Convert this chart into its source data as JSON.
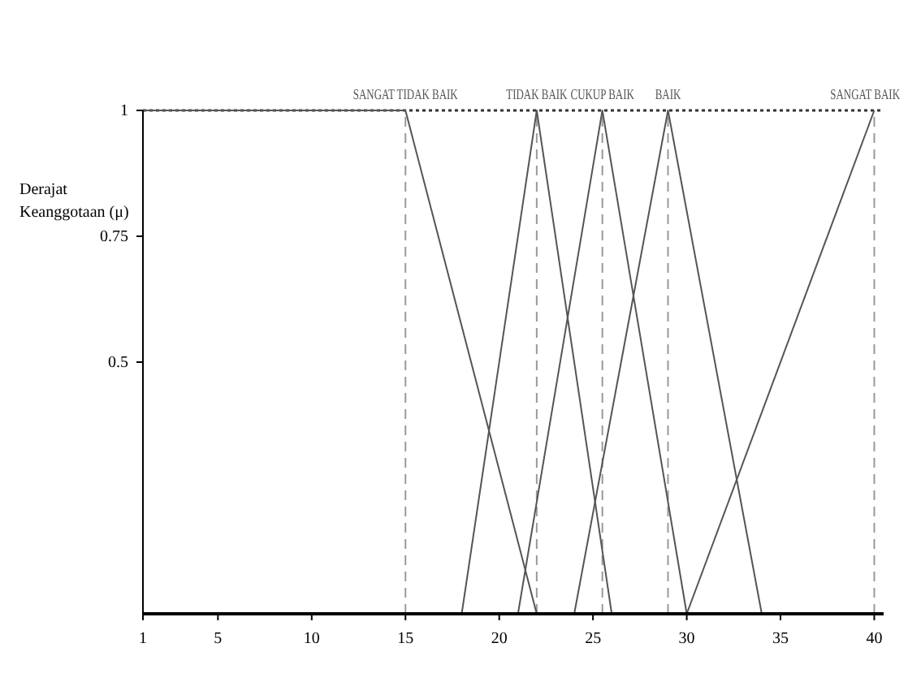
{
  "chart_data": {
    "type": "line",
    "ylabel": "Derajat Keanggotaan (μ)",
    "xlim": [
      1,
      40.5
    ],
    "xticks": [
      1,
      5,
      10,
      15,
      20,
      25,
      30,
      35,
      40
    ],
    "ylim": [
      0,
      1
    ],
    "yticks": [
      0.5,
      0.75,
      1
    ],
    "series": [
      {
        "name": "SANGAT TIDAK BAIK",
        "color": "#555555",
        "x": [
          1,
          15,
          22
        ],
        "values": [
          1,
          1,
          0
        ]
      },
      {
        "name": "TIDAK BAIK",
        "color": "#555555",
        "x": [
          18,
          22,
          26
        ],
        "values": [
          0,
          1,
          0
        ]
      },
      {
        "name": "CUKUP BAIK",
        "color": "#555555",
        "x": [
          21,
          25.5,
          30
        ],
        "values": [
          0,
          1,
          0
        ]
      },
      {
        "name": "BAIK",
        "color": "#555555",
        "x": [
          24,
          29,
          34
        ],
        "values": [
          0,
          1,
          0
        ]
      },
      {
        "name": "SANGAT BAIK",
        "color": "#555555",
        "x": [
          30,
          40
        ],
        "values": [
          0,
          1
        ]
      }
    ],
    "ref_lines": [
      {
        "axis": "x",
        "value": 15,
        "color": "#999999",
        "line_style": "dashed"
      },
      {
        "axis": "x",
        "value": 22,
        "color": "#999999",
        "line_style": "dashed"
      },
      {
        "axis": "x",
        "value": 25.5,
        "color": "#999999",
        "line_style": "dashed"
      },
      {
        "axis": "x",
        "value": 29,
        "color": "#999999",
        "line_style": "dashed"
      },
      {
        "axis": "x",
        "value": 40,
        "color": "#999999",
        "line_style": "dashed"
      },
      {
        "axis": "y",
        "value": 1,
        "color": "#333333",
        "line_style": "dotted"
      }
    ],
    "marker": "none",
    "line_style": "solid",
    "grid": false
  }
}
